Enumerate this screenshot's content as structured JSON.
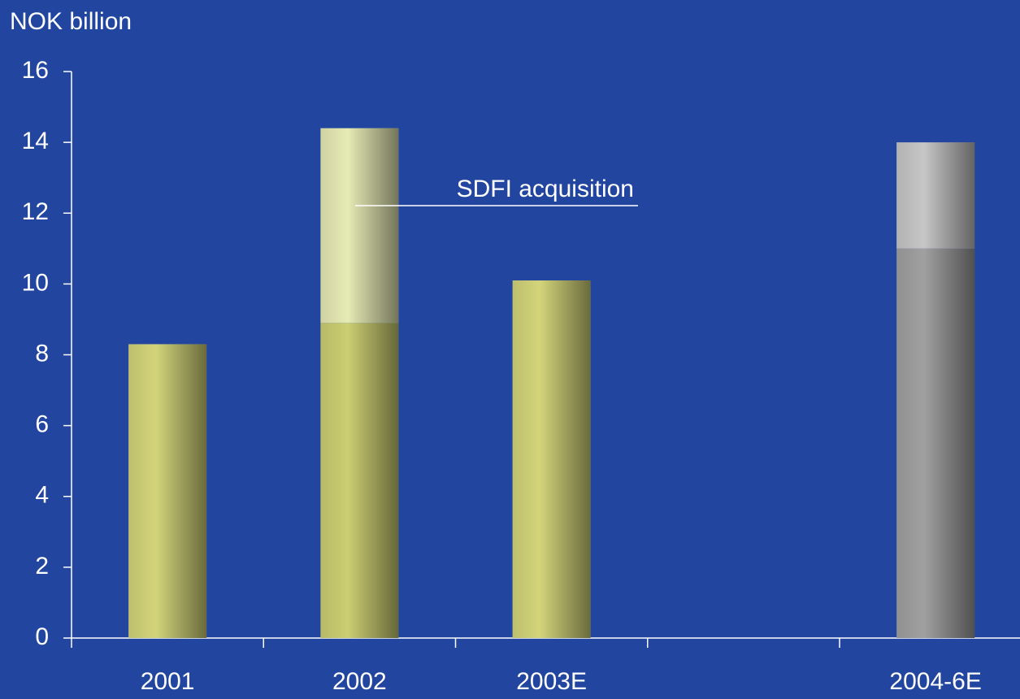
{
  "chart_data": {
    "type": "stacked_bar",
    "y_label": "NOK billion",
    "categories": [
      "2001",
      "2002",
      "2003E",
      null,
      "2004-6E"
    ],
    "series": [
      {
        "colors": [
          "#d3d47a",
          "#ccce72",
          "#d3d47a",
          null,
          "#a0a0a0"
        ],
        "values": [
          8.3,
          8.9,
          10.1,
          null,
          11
        ]
      },
      {
        "colors": [
          null,
          "#e6eab4",
          null,
          null,
          "#c6c6c6"
        ],
        "values": [
          null,
          5.5,
          null,
          null,
          3
        ]
      }
    ],
    "annotations": [
      {
        "text": "SDFI acquisition"
      }
    ],
    "ylim": [
      0,
      16
    ],
    "yticks": [
      0,
      2,
      4,
      6,
      8,
      10,
      12,
      14,
      16
    ],
    "grid": false
  }
}
